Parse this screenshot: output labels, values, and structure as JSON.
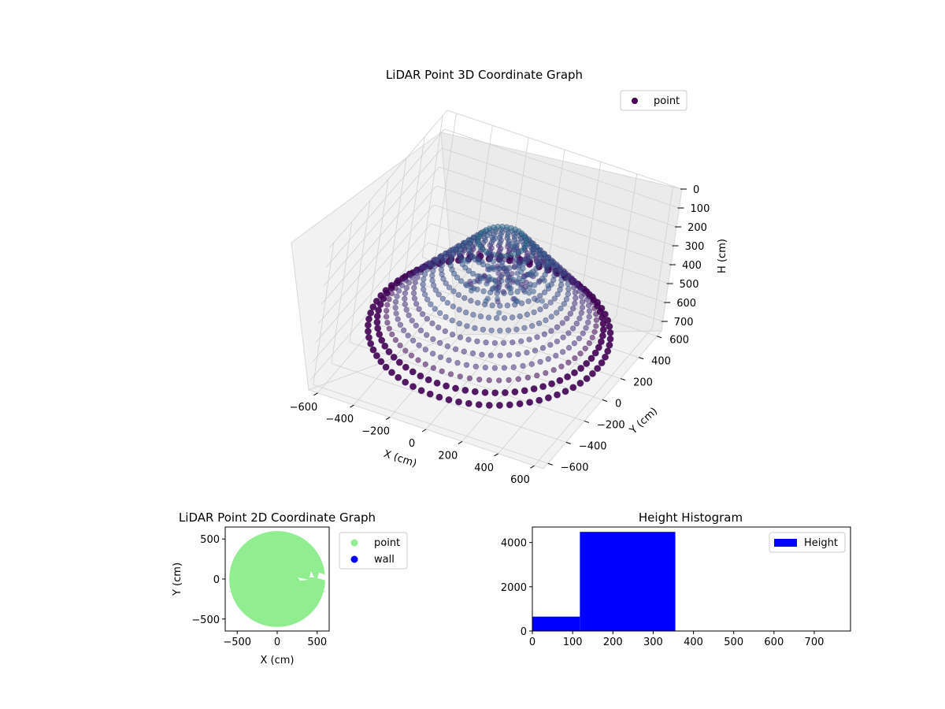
{
  "chart_data": [
    {
      "type": "scatter3d",
      "title": "LiDAR Point 3D Coordinate Graph",
      "xlabel": "X (cm)",
      "ylabel": "Y (cm)",
      "zlabel": "H (cm)",
      "x_ticks": [
        "−600",
        "−400",
        "−200",
        "0",
        "200",
        "400",
        "600"
      ],
      "y_ticks": [
        "−600",
        "−400",
        "−200",
        "0",
        "200",
        "400",
        "600"
      ],
      "z_ticks": [
        "0",
        "100",
        "200",
        "300",
        "400",
        "500",
        "600",
        "700"
      ],
      "xlim": [
        -650,
        650
      ],
      "ylim": [
        -650,
        650
      ],
      "zlim": [
        0,
        750
      ],
      "z_inverted": true,
      "grid": true,
      "legend": {
        "position": "top-right",
        "entries": [
          {
            "name": "point",
            "color": "#440154"
          }
        ]
      },
      "colormap": "viridis",
      "rings": [
        {
          "radius": 600,
          "h": 600
        },
        {
          "radius": 560,
          "h": 560
        },
        {
          "radius": 520,
          "h": 520
        },
        {
          "radius": 480,
          "h": 480
        },
        {
          "radius": 440,
          "h": 440
        },
        {
          "radius": 400,
          "h": 400
        },
        {
          "radius": 360,
          "h": 360
        },
        {
          "radius": 320,
          "h": 320
        },
        {
          "radius": 280,
          "h": 280
        },
        {
          "radius": 240,
          "h": 240
        },
        {
          "radius": 200,
          "h": 200
        },
        {
          "radius": 160,
          "h": 160
        },
        {
          "radius": 120,
          "h": 120
        }
      ]
    },
    {
      "type": "scatter",
      "title": "LiDAR Point 2D Coordinate Graph",
      "xlabel": "X (cm)",
      "ylabel": "Y (cm)",
      "xlim": [
        -650,
        650
      ],
      "ylim": [
        -650,
        650
      ],
      "x_ticks": [
        -500,
        0,
        500
      ],
      "y_ticks": [
        -500,
        0,
        500
      ],
      "legend": {
        "position": "outside-right",
        "entries": [
          {
            "name": "point",
            "color": "#90ee90"
          },
          {
            "name": "wall",
            "color": "#0000ff"
          }
        ]
      },
      "region": {
        "center": [
          0,
          0
        ],
        "radius": 600,
        "color": "#90ee90"
      }
    },
    {
      "type": "bar",
      "title": "Height Histogram",
      "xlim": [
        0,
        790
      ],
      "ylim": [
        0,
        4700
      ],
      "x_ticks": [
        0,
        100,
        200,
        300,
        400,
        500,
        600,
        700
      ],
      "y_ticks": [
        0,
        2000,
        4000
      ],
      "bins": [
        {
          "start": 0,
          "end": 118,
          "count": 650
        },
        {
          "start": 118,
          "end": 355,
          "count": 4480
        }
      ],
      "color": "#0000ff",
      "legend": {
        "position": "top-right",
        "entries": [
          {
            "name": "Height",
            "color": "#0000ff"
          }
        ]
      }
    }
  ]
}
